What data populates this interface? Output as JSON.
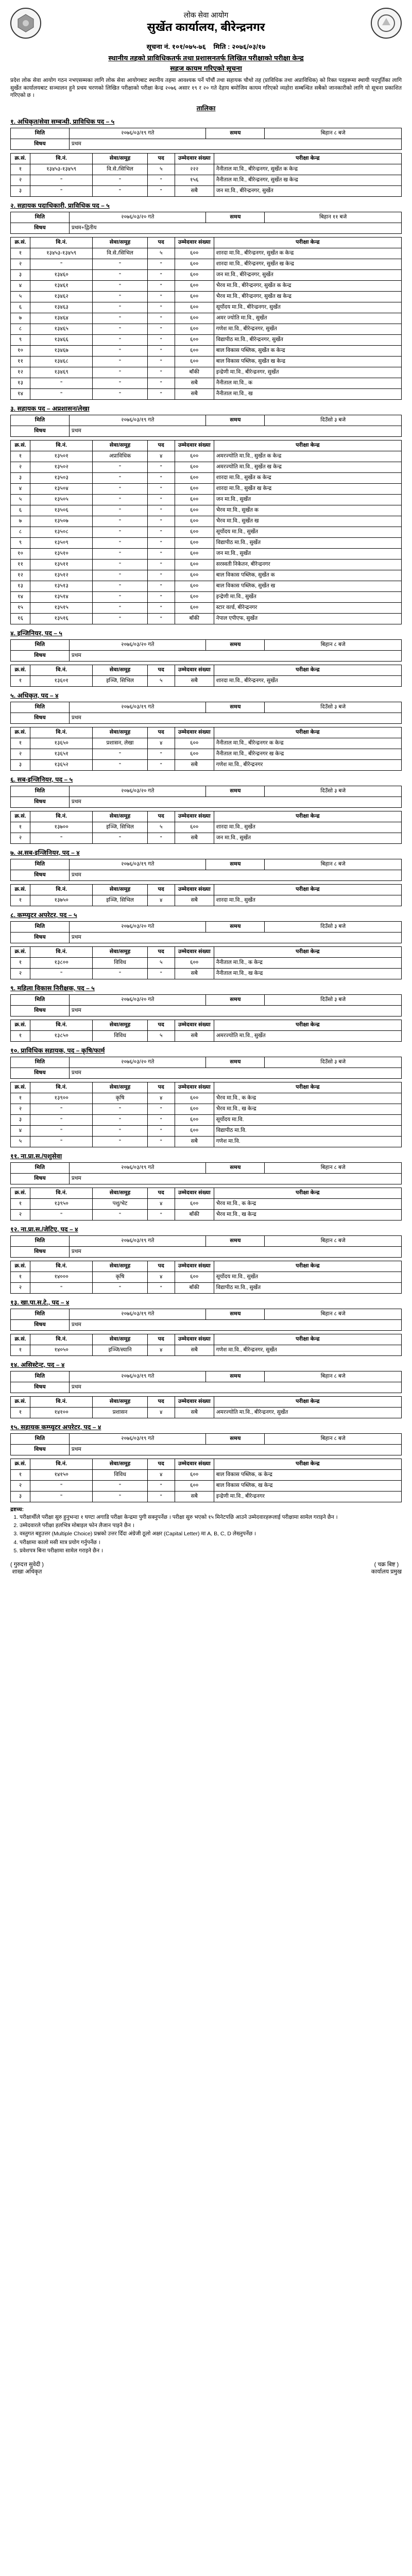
{
  "header": {
    "org_top": "लोक सेवा आयोग",
    "office": "सुर्खेत कार्यालय, बीरेन्द्रनगर",
    "notice_no_label": "सूचना नं.",
    "notice_no": "१०१/०७५-७६",
    "date_label": "मिति :",
    "date": "२०७६/०३/१७",
    "title1": "स्थानीय तहको प्राविधिकतर्फ तथा प्रशासनतर्फ लिखित परीक्षाको परीक्षा केन्द्र",
    "title2": "सहज कायम गरिएको सूचना"
  },
  "intro": "प्रदेश लोक सेवा आयोग गठन नभएसम्मका लागि लोक सेवा आयोगबाट स्थानीय तहमा आवश्यक पर्ने पाँचौं तथा सहायक चौथो तह (प्राविधिक तथा अप्राविधिक) को रिक्त पदहरूमा स्थायी पदपूर्तिका लागि सुर्खेत कार्यालयबाट सञ्चालन हुने प्रथम चरणको लिखित परीक्षाको परीक्षा केन्द्र २०७६ असार १९ र २० गते देहाय बमोजिम कायम गरिएको व्यहोरा सम्बन्धित सबैको जानकारीको लागि यो सूचना प्रकाशित गरिएको छ ।",
  "schedule_label": "तालिका",
  "cols": {
    "sn": "क्र.सं.",
    "vi": "वि.नं.",
    "sg": "सेवा/समूह",
    "ph": "पद",
    "nc": "उम्मेदवार संख्या",
    "pn": "परीक्षा केन्द्र",
    "date": "मिति",
    "time": "समय",
    "count_label": "संख्या"
  },
  "meta_paper": "विषय",
  "sections": [
    {
      "title": "१. अधिकृत/सेवा सम्बन्धी, प्राविधिक पद – ५",
      "meta": {
        "date": "२०७६/०३/१९ गते",
        "time": "बिहान ८ बजे",
        "paper": "प्रथम"
      },
      "rows": [
        {
          "sn": "१",
          "vi": "१३४५३-१३४५९",
          "sg": "वि.से./सिभिल",
          "ph": "५",
          "nc": "२२२",
          "pn": "नैनीताल मा.वि., बीरेन्द्रनगर, सुर्खेत क केन्द्र"
        },
        {
          "sn": "२",
          "vi": "\"",
          "sg": "\"",
          "ph": "\"",
          "nc": "१५६",
          "pn": "नैनीताल मा.वि., बीरेन्द्रनगर, सुर्खेत ख केन्द्र"
        },
        {
          "sn": "३",
          "vi": "\"",
          "sg": "\"",
          "ph": "\"",
          "nc": "सबै",
          "pn": "जन मा.वि., बीरेन्द्रनगर, सुर्खेत"
        }
      ]
    },
    {
      "title": "२. सहायक पदाधिकारी, प्राविधिक पद – ५",
      "meta": {
        "date": "२०७६/०३/२० गते",
        "time": "बिहान ११ बजे",
        "paper": "प्रथम+द्वितीय"
      },
      "rows": [
        {
          "sn": "१",
          "vi": "१३४५३-१३४५९",
          "sg": "वि.से./सिभिल",
          "ph": "५",
          "nc": "६००",
          "pn": "शारदा मा.वि., बीरेन्द्रनगर, सुर्खेत क केन्द्र"
        },
        {
          "sn": "२",
          "vi": "\"",
          "sg": "\"",
          "ph": "\"",
          "nc": "६००",
          "pn": "शारदा मा.वि., बीरेन्द्रनगर, सुर्खेत ख केन्द्र"
        },
        {
          "sn": "३",
          "vi": "१३४६०",
          "sg": "\"",
          "ph": "\"",
          "nc": "६००",
          "pn": "जन मा.वि., बीरेन्द्रनगर, सुर्खेत"
        },
        {
          "sn": "४",
          "vi": "१३४६१",
          "sg": "\"",
          "ph": "\"",
          "nc": "६००",
          "pn": "भैरव मा.वि., बीरेन्द्रनगर, सुर्खेत क केन्द्र"
        },
        {
          "sn": "५",
          "vi": "१३४६२",
          "sg": "\"",
          "ph": "\"",
          "nc": "६००",
          "pn": "भैरव मा.वि., बीरेन्द्रनगर, सुर्खेत ख केन्द्र"
        },
        {
          "sn": "६",
          "vi": "१३४६३",
          "sg": "\"",
          "ph": "\"",
          "nc": "६००",
          "pn": "सूर्योदय मा.वि., बीरेन्द्रनगर, सुर्खेत"
        },
        {
          "sn": "७",
          "vi": "१३४६४",
          "sg": "\"",
          "ph": "\"",
          "nc": "६००",
          "pn": "अमर ज्योति मा.वि., सुर्खेत"
        },
        {
          "sn": "८",
          "vi": "१३४६५",
          "sg": "\"",
          "ph": "\"",
          "nc": "६००",
          "pn": "गणेश मा.वि., बीरेन्द्रनगर, सुर्खेत"
        },
        {
          "sn": "९",
          "vi": "१३४६६",
          "sg": "\"",
          "ph": "\"",
          "nc": "६००",
          "pn": "विद्यापीठ मा.वि., बीरेन्द्रनगर, सुर्खेत"
        },
        {
          "sn": "१०",
          "vi": "१३४६७",
          "sg": "\"",
          "ph": "\"",
          "nc": "६००",
          "pn": "बाल विकास पब्लिक, सुर्खेत क केन्द्र"
        },
        {
          "sn": "११",
          "vi": "१३४६८",
          "sg": "\"",
          "ph": "\"",
          "nc": "६००",
          "pn": "बाल विकास पब्लिक, सुर्खेत ख केन्द्र"
        },
        {
          "sn": "१२",
          "vi": "१३४६९",
          "sg": "\"",
          "ph": "\"",
          "nc": "बाँकी",
          "pn": "इन्द्रेणी मा.वि., बीरेन्द्रनगर, सुर्खेत"
        },
        {
          "sn": "१३",
          "vi": "\"",
          "sg": "\"",
          "ph": "\"",
          "nc": "सबै",
          "pn": "नैनीताल मा.वि., क"
        },
        {
          "sn": "१४",
          "vi": "\"",
          "sg": "\"",
          "ph": "\"",
          "nc": "सबै",
          "pn": "नैनीताल मा.वि., ख"
        }
      ]
    },
    {
      "title": "३. सहायक पद – अप्रशासन/लेखा",
      "meta": {
        "date": "२०७६/०३/१९ गते",
        "time": "दिउँसो ३ बजे",
        "paper": "प्रथम"
      },
      "rows": [
        {
          "sn": "१",
          "vi": "१३५०१",
          "sg": "अप्राविधिक",
          "ph": "४",
          "nc": "६००",
          "pn": "अमरज्योति मा.वि., सुर्खेत क केन्द्र"
        },
        {
          "sn": "२",
          "vi": "१३५०२",
          "sg": "\"",
          "ph": "\"",
          "nc": "६००",
          "pn": "अमरज्योति मा.वि., सुर्खेत ख केन्द्र"
        },
        {
          "sn": "३",
          "vi": "१३५०३",
          "sg": "\"",
          "ph": "\"",
          "nc": "६००",
          "pn": "शारदा मा.वि., सुर्खेत क केन्द्र"
        },
        {
          "sn": "४",
          "vi": "१३५०४",
          "sg": "\"",
          "ph": "\"",
          "nc": "६००",
          "pn": "शारदा मा.वि., सुर्खेत ख केन्द्र"
        },
        {
          "sn": "५",
          "vi": "१३५०५",
          "sg": "\"",
          "ph": "\"",
          "nc": "६००",
          "pn": "जन मा.वि., सुर्खेत"
        },
        {
          "sn": "६",
          "vi": "१३५०६",
          "sg": "\"",
          "ph": "\"",
          "nc": "६००",
          "pn": "भैरव मा.वि., सुर्खेत क"
        },
        {
          "sn": "७",
          "vi": "१३५०७",
          "sg": "\"",
          "ph": "\"",
          "nc": "६००",
          "pn": "भैरव मा.वि., सुर्खेत ख"
        },
        {
          "sn": "८",
          "vi": "१३५०८",
          "sg": "\"",
          "ph": "\"",
          "nc": "६००",
          "pn": "सूर्योदय मा.वि., सुर्खेत"
        },
        {
          "sn": "९",
          "vi": "१३५०९",
          "sg": "\"",
          "ph": "\"",
          "nc": "६००",
          "pn": "विद्यापीठ मा.वि., सुर्खेत"
        },
        {
          "sn": "१०",
          "vi": "१३५१०",
          "sg": "\"",
          "ph": "\"",
          "nc": "६००",
          "pn": "जन मा.वि., सुर्खेत"
        },
        {
          "sn": "११",
          "vi": "१३५११",
          "sg": "\"",
          "ph": "\"",
          "nc": "६००",
          "pn": "सरस्वती निकेतन, बीरेन्द्रनगर"
        },
        {
          "sn": "१२",
          "vi": "१३५१२",
          "sg": "\"",
          "ph": "\"",
          "nc": "६००",
          "pn": "बाल विकास पब्लिक, सुर्खेत क"
        },
        {
          "sn": "१३",
          "vi": "१३५१३",
          "sg": "\"",
          "ph": "\"",
          "nc": "६००",
          "pn": "बाल विकास पब्लिक, सुर्खेत ख"
        },
        {
          "sn": "१४",
          "vi": "१३५१४",
          "sg": "\"",
          "ph": "\"",
          "nc": "६००",
          "pn": "इन्द्रेणी मा.वि., सुर्खेत"
        },
        {
          "sn": "१५",
          "vi": "१३५१५",
          "sg": "\"",
          "ph": "\"",
          "nc": "६००",
          "pn": "स्टार वर्ल्ड, बीरेन्द्रनगर"
        },
        {
          "sn": "१६",
          "vi": "१३५१६",
          "sg": "\"",
          "ph": "\"",
          "nc": "बाँकी",
          "pn": "नेपाल एपीएफ, सुर्खेत"
        }
      ]
    },
    {
      "title": "४. इन्जिनियर, पद – ५",
      "meta": {
        "date": "२०७६/०३/२० गते",
        "time": "बिहान ८ बजे",
        "paper": "प्रथम"
      },
      "rows": [
        {
          "sn": "१",
          "vi": "१३६०१",
          "sg": "इञ्जि, सिभिल",
          "ph": "५",
          "nc": "सबै",
          "pn": "शारदा मा.वि., बीरेन्द्रनगर, सुर्खेत"
        }
      ]
    },
    {
      "title": "५. अधिकृत, पद – ४",
      "meta": {
        "date": "२०७६/०३/१९ गते",
        "time": "दिउँसो ३ बजे",
        "paper": "प्रथम"
      },
      "rows": [
        {
          "sn": "१",
          "vi": "१३६५०",
          "sg": "प्रशासन, लेखा",
          "ph": "४",
          "nc": "६००",
          "pn": "नैनीताल मा.वि., बीरेन्द्रनगर क केन्द्र"
        },
        {
          "sn": "२",
          "vi": "१३६५१",
          "sg": "\"",
          "ph": "\"",
          "nc": "६००",
          "pn": "नैनीताल मा.वि., बीरेन्द्रनगर ख केन्द्र"
        },
        {
          "sn": "३",
          "vi": "१३६५२",
          "sg": "\"",
          "ph": "\"",
          "nc": "सबै",
          "pn": "गणेश मा.वि., बीरेन्द्रनगर"
        }
      ]
    },
    {
      "title": "६. सब-इन्जिनियर, पद – ५",
      "meta": {
        "date": "२०७६/०३/२० गते",
        "time": "दिउँसो ३ बजे",
        "paper": "प्रथम"
      },
      "rows": [
        {
          "sn": "१",
          "vi": "१३७००",
          "sg": "इञ्जि, सिभिल",
          "ph": "५",
          "nc": "६००",
          "pn": "शारदा मा.वि., सुर्खेत"
        },
        {
          "sn": "२",
          "vi": "\"",
          "sg": "\"",
          "ph": "\"",
          "nc": "सबै",
          "pn": "जन मा.वि., सुर्खेत"
        }
      ]
    },
    {
      "title": "७. अ.सब-इन्जिनियर, पद – ४",
      "meta": {
        "date": "२०७६/०३/१९ गते",
        "time": "बिहान ८ बजे",
        "paper": "प्रथम"
      },
      "rows": [
        {
          "sn": "१",
          "vi": "१३७५०",
          "sg": "इञ्जि, सिभिल",
          "ph": "४",
          "nc": "सबै",
          "pn": "शारदा मा.वि., सुर्खेत"
        }
      ]
    },
    {
      "title": "८. कम्प्युटर अपरेटर, पद – ५",
      "meta": {
        "date": "२०७६/०३/२० गते",
        "time": "दिउँसो ३ बजे",
        "paper": "प्रथम"
      },
      "rows": [
        {
          "sn": "१",
          "vi": "१३८००",
          "sg": "विविध",
          "ph": "५",
          "nc": "६००",
          "pn": "नैनीताल मा.वि., क केन्द्र"
        },
        {
          "sn": "२",
          "vi": "\"",
          "sg": "\"",
          "ph": "\"",
          "nc": "सबै",
          "pn": "नैनीताल मा.वि., ख केन्द्र"
        }
      ]
    },
    {
      "title": "९. महिला विकास निरीक्षक, पद – ५",
      "meta": {
        "date": "२०७६/०३/२० गते",
        "time": "दिउँसो ३ बजे",
        "paper": "प्रथम"
      },
      "rows": [
        {
          "sn": "१",
          "vi": "१३८५०",
          "sg": "विविध",
          "ph": "५",
          "nc": "सबै",
          "pn": "अमरज्योति मा.वि., सुर्खेत"
        }
      ]
    },
    {
      "title": "१०. प्राविधिक सहायक, पद – कृषि/फार्म",
      "meta": {
        "date": "२०७६/०३/२० गते",
        "time": "दिउँसो ३ बजे",
        "paper": "प्रथम"
      },
      "rows": [
        {
          "sn": "१",
          "vi": "१३९००",
          "sg": "कृषि",
          "ph": "४",
          "nc": "६००",
          "pn": "भैरव मा.वि., क केन्द्र"
        },
        {
          "sn": "२",
          "vi": "\"",
          "sg": "\"",
          "ph": "\"",
          "nc": "६००",
          "pn": "भैरव मा.वि., ख केन्द्र"
        },
        {
          "sn": "३",
          "vi": "\"",
          "sg": "\"",
          "ph": "\"",
          "nc": "६००",
          "pn": "सूर्योदय मा.वि."
        },
        {
          "sn": "४",
          "vi": "\"",
          "sg": "\"",
          "ph": "\"",
          "nc": "६००",
          "pn": "विद्यापीठ मा.वि."
        },
        {
          "sn": "५",
          "vi": "\"",
          "sg": "\"",
          "ph": "\"",
          "nc": "सबै",
          "pn": "गणेश मा.वि."
        }
      ]
    },
    {
      "title": "११. ना.प्रा.स./पशुसेवा",
      "meta": {
        "date": "२०७६/०३/१९ गते",
        "time": "बिहान ८ बजे",
        "paper": "प्रथम"
      },
      "rows": [
        {
          "sn": "१",
          "vi": "१३९५०",
          "sg": "पशु/भेट",
          "ph": "४",
          "nc": "६००",
          "pn": "भैरव मा.वि., क केन्द्र"
        },
        {
          "sn": "२",
          "vi": "\"",
          "sg": "\"",
          "ph": "\"",
          "nc": "बाँकी",
          "pn": "भैरव मा.वि., ख केन्द्र"
        }
      ]
    },
    {
      "title": "१२. ना.प्रा.स./जेटिए, पद – ४",
      "meta": {
        "date": "२०७६/०३/१९ गते",
        "time": "बिहान ८ बजे",
        "paper": "प्रथम"
      },
      "rows": [
        {
          "sn": "१",
          "vi": "१४०००",
          "sg": "कृषि",
          "ph": "४",
          "nc": "६००",
          "pn": "सूर्योदय मा.वि., सुर्खेत"
        },
        {
          "sn": "२",
          "vi": "\"",
          "sg": "\"",
          "ph": "\"",
          "nc": "बाँकी",
          "pn": "विद्यापीठ मा.वि., सुर्खेत"
        }
      ]
    },
    {
      "title": "१३. खा.पा.स.टे., पद – ४",
      "meta": {
        "date": "२०७६/०३/१९ गते",
        "time": "बिहान ८ बजे",
        "paper": "प्रथम"
      },
      "rows": [
        {
          "sn": "१",
          "vi": "१४०५०",
          "sg": "इञ्जि/स्यानि",
          "ph": "४",
          "nc": "सबै",
          "pn": "गणेश मा.वि., बीरेन्द्रनगर, सुर्खेत"
        }
      ]
    },
    {
      "title": "१४. असिस्टेन्ट, पद – ४",
      "meta": {
        "date": "२०७६/०३/१९ गते",
        "time": "बिहान ८ बजे",
        "paper": "प्रथम"
      },
      "rows": [
        {
          "sn": "१",
          "vi": "१४१००",
          "sg": "प्रशासन",
          "ph": "४",
          "nc": "सबै",
          "pn": "अमरज्योति मा.वि., बीरेन्द्रनगर, सुर्खेत"
        }
      ]
    },
    {
      "title": "१५. सहायक कम्प्युटर अपरेटर, पद – ४",
      "meta": {
        "date": "२०७६/०३/१९ गते",
        "time": "बिहान ८ बजे",
        "paper": "प्रथम"
      },
      "rows": [
        {
          "sn": "१",
          "vi": "१४१५०",
          "sg": "विविध",
          "ph": "४",
          "nc": "६००",
          "pn": "बाल विकास पब्लिक, क केन्द्र"
        },
        {
          "sn": "२",
          "vi": "\"",
          "sg": "\"",
          "ph": "\"",
          "nc": "६००",
          "pn": "बाल विकास पब्लिक, ख केन्द्र"
        },
        {
          "sn": "३",
          "vi": "\"",
          "sg": "\"",
          "ph": "\"",
          "nc": "सबै",
          "pn": "इन्द्रेणी मा.वि., बीरेन्द्रनगर"
        }
      ]
    }
  ],
  "notes_title": "द्रष्टव्य:",
  "notes": [
    "परीक्षार्थीले परीक्षा सुरु हुनुभन्दा १ घण्टा अगाडि परीक्षा केन्द्रमा पुगी सक्नुपर्नेछ । परीक्षा सुरु भएको १५ मिनेटपछि आउने उम्मेदवारहरूलाई परीक्षामा सामेल गराइने छैन ।",
    "उम्मेदवारले परीक्षा हलभित्र मोबाइल फोन लैजान पाइने छैन ।",
    "वस्तुगत बहुउत्तर (Multiple Choice) प्रश्नको उत्तर दिँदा अंग्रेजी ठूलो अक्षर (Capital Letter) मा A, B, C, D लेख्नुपर्नेछ ।",
    "परीक्षामा कालो मसी मात्र प्रयोग गर्नुपर्नेछ ।",
    "प्रवेशपत्र बिना परीक्षामा सामेल गराइने छैन ।"
  ],
  "footer": {
    "left1": "( गुरुदत्त सुवेदी )",
    "left2": "शाखा अधिकृत",
    "right1": "( चक्र बिष्ट )",
    "right2": "कार्यालय प्रमुख"
  }
}
